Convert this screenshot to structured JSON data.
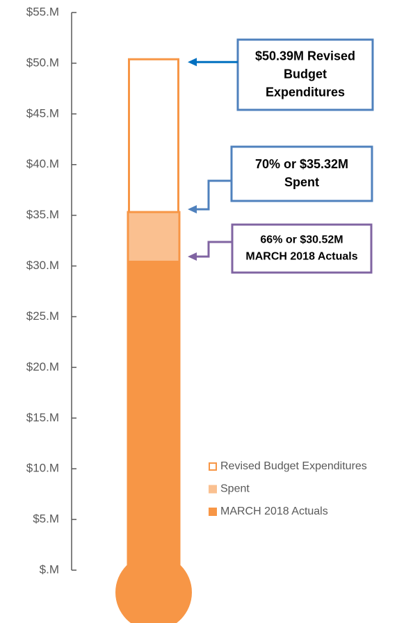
{
  "chart_data": {
    "type": "bar",
    "series": [
      {
        "name": "Revised Budget Expenditures",
        "color": "#f79646",
        "values": [
          50.39
        ]
      },
      {
        "name": "Spent",
        "color": "#fac090",
        "values": [
          35.32
        ]
      },
      {
        "name": "MARCH 2018 Actuals",
        "color": "#f79646",
        "values": [
          30.52
        ]
      }
    ],
    "ylim": [
      0,
      55
    ],
    "yticks": [
      {
        "value": 0,
        "label": "$.M"
      },
      {
        "value": 5,
        "label": "$5.M"
      },
      {
        "value": 10,
        "label": "$10.M"
      },
      {
        "value": 15,
        "label": "$15.M"
      },
      {
        "value": 20,
        "label": "$20.M"
      },
      {
        "value": 25,
        "label": "$25.M"
      },
      {
        "value": 30,
        "label": "$30.M"
      },
      {
        "value": 35,
        "label": "$35.M"
      },
      {
        "value": 40,
        "label": "$40.M"
      },
      {
        "value": 45,
        "label": "$45.M"
      },
      {
        "value": 50,
        "label": "$50.M"
      },
      {
        "value": 55,
        "label": "$55.M"
      }
    ],
    "annotations": [
      {
        "lines": [
          "$50.39M Revised",
          "Budget",
          "Expenditures"
        ],
        "color": "#4f81bd"
      },
      {
        "lines": [
          "70% or $35.32M",
          "Spent"
        ],
        "color": "#4f81bd"
      },
      {
        "lines": [
          "66% or $30.52M",
          "MARCH 2018 Actuals"
        ],
        "color": "#8064a2"
      }
    ],
    "legend": "lower right"
  }
}
